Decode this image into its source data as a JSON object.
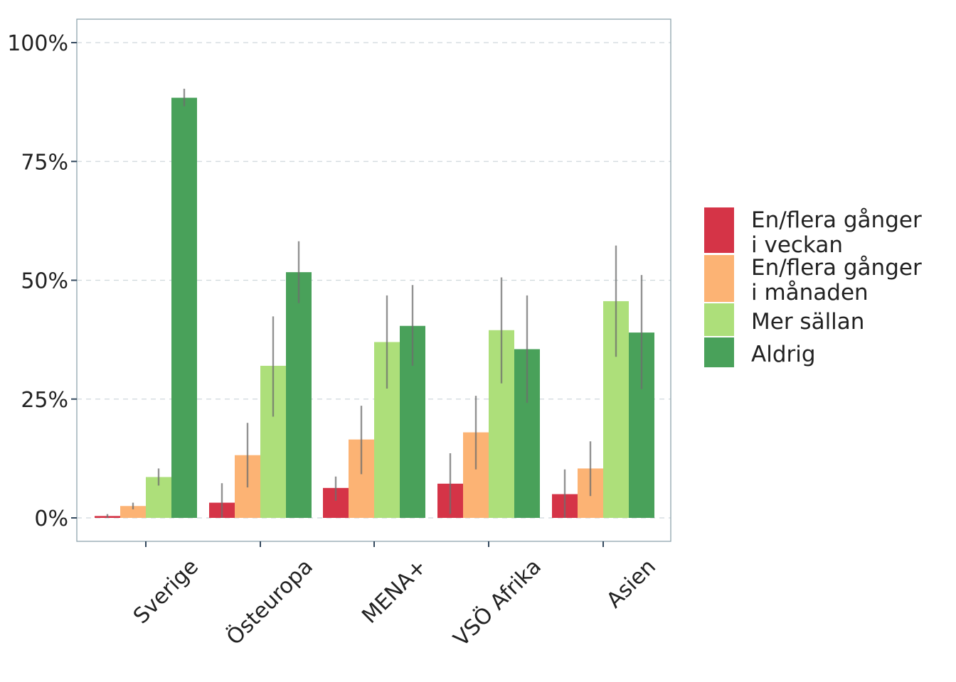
{
  "chart_data": {
    "type": "bar",
    "title": "",
    "xlabel": "",
    "ylabel": "",
    "ylim": [
      -0.05,
      1.05
    ],
    "yticks": [
      0,
      0.25,
      0.5,
      0.75,
      1.0
    ],
    "ytick_labels": [
      "0%",
      "25%",
      "50%",
      "75%",
      "100%"
    ],
    "grid": "horizontal-dashed",
    "legend_position": "right",
    "categories": [
      "Sverige",
      "Östeuropa",
      "MENA+",
      "VSÖ Afrika",
      "Asien"
    ],
    "series": [
      {
        "name": "En/flera gånger i veckan",
        "legend_lines": [
          "En/flera gånger",
          "i veckan"
        ],
        "color": "#d53447",
        "values": [
          0.004,
          0.032,
          0.063,
          0.072,
          0.05
        ],
        "err_low": [
          0.0,
          0.0,
          0.036,
          0.008,
          0.0
        ],
        "err_high": [
          0.008,
          0.073,
          0.087,
          0.136,
          0.102
        ]
      },
      {
        "name": "En/flera gånger i månaden",
        "legend_lines": [
          "En/flera gånger",
          "i månaden"
        ],
        "color": "#fcb374",
        "values": [
          0.025,
          0.132,
          0.165,
          0.18,
          0.104
        ],
        "err_low": [
          0.018,
          0.064,
          0.092,
          0.102,
          0.046
        ],
        "err_high": [
          0.032,
          0.2,
          0.236,
          0.257,
          0.161
        ]
      },
      {
        "name": "Mer sällan",
        "legend_lines": [
          "Mer sällan"
        ],
        "color": "#addf7a",
        "values": [
          0.086,
          0.32,
          0.37,
          0.395,
          0.456
        ],
        "err_low": [
          0.068,
          0.213,
          0.272,
          0.283,
          0.339
        ],
        "err_high": [
          0.104,
          0.424,
          0.468,
          0.506,
          0.573
        ]
      },
      {
        "name": "Aldrig",
        "legend_lines": [
          "Aldrig"
        ],
        "color": "#49a15a",
        "values": [
          0.884,
          0.517,
          0.404,
          0.355,
          0.39
        ],
        "err_low": [
          0.866,
          0.452,
          0.32,
          0.242,
          0.271
        ],
        "err_high": [
          0.903,
          0.582,
          0.49,
          0.468,
          0.511
        ]
      }
    ]
  }
}
